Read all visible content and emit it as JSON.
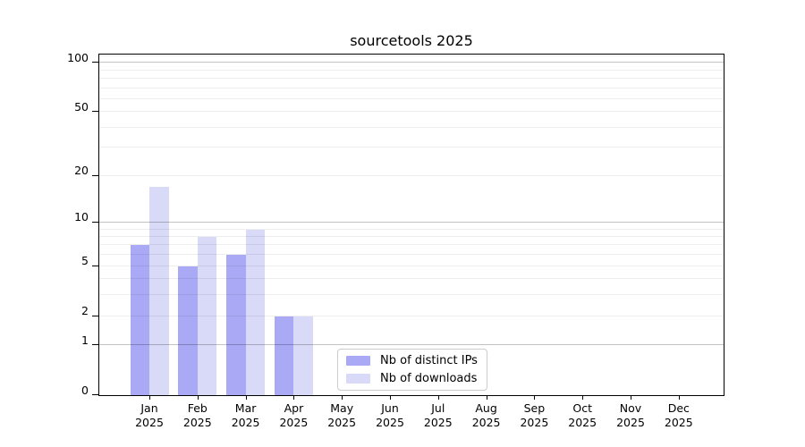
{
  "chart_data": {
    "type": "bar",
    "title": "sourcetools 2025",
    "year": "2025",
    "months": [
      "Jan",
      "Feb",
      "Mar",
      "Apr",
      "May",
      "Jun",
      "Jul",
      "Aug",
      "Sep",
      "Oct",
      "Nov",
      "Dec"
    ],
    "categories": [
      "Jan 2025",
      "Feb 2025",
      "Mar 2025",
      "Apr 2025",
      "May 2025",
      "Jun 2025",
      "Jul 2025",
      "Aug 2025",
      "Sep 2025",
      "Oct 2025",
      "Nov 2025",
      "Dec 2025"
    ],
    "series": [
      {
        "name": "Nb of distinct IPs",
        "color": "#a9a9f5",
        "values": [
          7,
          5,
          6,
          2,
          0,
          0,
          0,
          0,
          0,
          0,
          0,
          0
        ]
      },
      {
        "name": "Nb of downloads",
        "color": "#d9d9f8",
        "values": [
          17,
          8,
          9,
          2,
          0,
          0,
          0,
          0,
          0,
          0,
          0,
          0
        ]
      }
    ],
    "xlabel": "",
    "ylabel": "",
    "yscale": "log(1+x)",
    "ylim": [
      0,
      113.5
    ],
    "y_ticks": [
      0,
      1,
      2,
      5,
      10,
      20,
      50,
      100
    ],
    "grid": {
      "on": true,
      "major_lines_at": [
        1,
        10,
        100
      ],
      "minor_lines_at": [
        2,
        3,
        4,
        5,
        6,
        7,
        8,
        9,
        20,
        30,
        40,
        50,
        60,
        70,
        80,
        90,
        110
      ],
      "drawn_above_bars": true
    },
    "legend": {
      "position": "lower center",
      "entries": [
        "Nb of distinct IPs",
        "Nb of downloads"
      ]
    }
  },
  "colors": {
    "background": "#ffffff",
    "spine": "#000000",
    "text": "#000000",
    "legend_border": "#cccccc",
    "bar_distinct_ips": "#a9a9f5",
    "bar_downloads": "#d9d9f8"
  }
}
